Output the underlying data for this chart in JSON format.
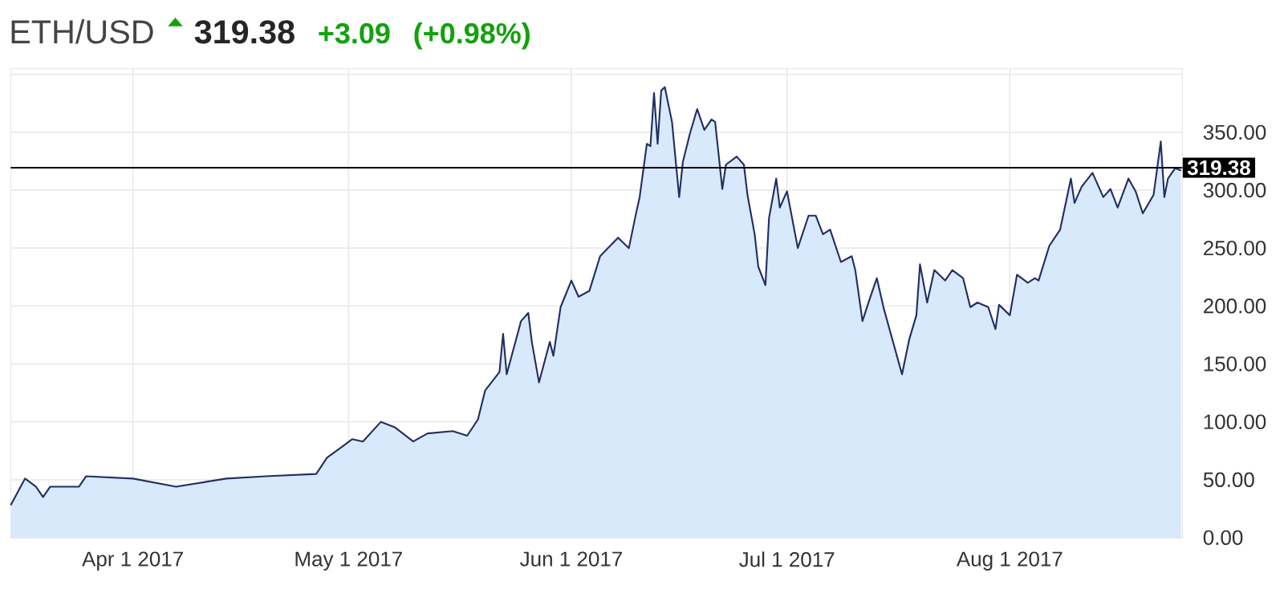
{
  "chart_data": {
    "type": "area",
    "title": "ETH/USD",
    "annotations": [
      "319.38",
      "+3.09",
      "(+0.98%)"
    ],
    "color": "#232f63",
    "x": [
      "2017-03-15",
      "2017-03-17",
      "2017-03-18T12:00",
      "2017-03-19T12:00",
      "2017-03-20T12:00",
      "2017-03-24T12:00",
      "2017-03-25T12:00",
      "2017-04-01",
      "2017-04-07",
      "2017-04-14",
      "2017-04-19T12:00",
      "2017-04-26T12:00",
      "2017-04-28",
      "2017-04-30",
      "2017-05-01T12:00",
      "2017-05-03",
      "2017-05-05T12:00",
      "2017-05-07T12:00",
      "2017-05-10",
      "2017-05-12",
      "2017-05-15T12:00",
      "2017-05-17T12:00",
      "2017-05-19",
      "2017-05-20",
      "2017-05-22",
      "2017-05-22T12:00",
      "2017-05-23",
      "2017-05-25",
      "2017-05-26",
      "2017-05-26T12:00",
      "2017-05-27T12:00",
      "2017-05-29",
      "2017-05-29T12:00",
      "2017-05-30T12:00",
      "2017-06-01",
      "2017-06-02",
      "2017-06-03T12:00",
      "2017-06-05",
      "2017-06-07T12:00",
      "2017-06-09",
      "2017-06-10",
      "2017-06-10T12:00",
      "2017-06-11T12:00",
      "2017-06-12",
      "2017-06-12T12:00",
      "2017-06-13",
      "2017-06-13T12:00",
      "2017-06-14",
      "2017-06-15",
      "2017-06-16",
      "2017-06-16T12:00",
      "2017-06-17T12:00",
      "2017-06-18T12:00",
      "2017-06-19T12:00",
      "2017-06-20T12:00",
      "2017-06-21",
      "2017-06-22",
      "2017-06-22T12:00",
      "2017-06-24",
      "2017-06-25",
      "2017-06-25T12:00",
      "2017-06-26T12:00",
      "2017-06-27",
      "2017-06-28",
      "2017-06-28T12:00",
      "2017-06-29T12:00",
      "2017-06-30",
      "2017-07-01",
      "2017-07-02T12:00",
      "2017-07-04",
      "2017-07-05",
      "2017-07-06",
      "2017-07-07",
      "2017-07-08T12:00",
      "2017-07-10",
      "2017-07-10T12:00",
      "2017-07-11T12:00",
      "2017-07-12T12:00",
      "2017-07-13T12:00",
      "2017-07-14T12:00",
      "2017-07-17",
      "2017-07-18",
      "2017-07-19",
      "2017-07-19T12:00",
      "2017-07-20T12:00",
      "2017-07-21T12:00",
      "2017-07-23",
      "2017-07-24",
      "2017-07-25T12:00",
      "2017-07-26T12:00",
      "2017-07-27T12:00",
      "2017-07-29",
      "2017-07-30",
      "2017-07-30T12:00",
      "2017-08-01",
      "2017-08-02",
      "2017-08-03T12:00",
      "2017-08-04T12:00",
      "2017-08-05",
      "2017-08-06T12:00",
      "2017-08-08",
      "2017-08-09T12:00",
      "2017-08-10",
      "2017-08-11",
      "2017-08-12T12:00",
      "2017-08-14",
      "2017-08-15",
      "2017-08-16",
      "2017-08-17T12:00",
      "2017-08-18T12:00",
      "2017-08-19T12:00",
      "2017-08-21",
      "2017-08-22",
      "2017-08-22T12:00",
      "2017-08-23",
      "2017-08-24",
      "2017-08-24T20:00"
    ],
    "values": [
      28,
      51,
      44,
      35,
      44,
      44,
      53,
      51,
      44,
      51,
      53,
      55,
      69,
      78,
      85,
      83,
      100,
      95,
      83,
      90,
      92,
      88,
      102,
      127,
      143,
      176,
      141,
      187,
      194,
      169,
      134,
      169,
      157,
      199,
      222,
      208,
      213,
      243,
      259,
      250,
      280,
      294,
      340,
      338,
      384,
      340,
      386,
      389,
      359,
      294,
      324,
      349,
      370,
      352,
      361,
      359,
      301,
      322,
      329,
      322,
      296,
      262,
      234,
      218,
      276,
      310,
      285,
      299,
      250,
      278,
      278,
      262,
      266,
      238,
      243,
      231,
      187,
      206,
      224,
      197,
      141,
      171,
      192,
      236,
      203,
      231,
      222,
      231,
      224,
      199,
      203,
      199,
      180,
      201,
      192,
      227,
      220,
      224,
      222,
      252,
      266,
      310,
      289,
      303,
      315,
      294,
      301,
      285,
      310,
      299,
      280,
      296,
      342,
      294,
      310,
      319,
      317
    ],
    "xlim": [
      "2017-03-15",
      "2017-08-25"
    ],
    "xticks": [
      {
        "value": "2017-04-01",
        "label": "Apr 1 2017"
      },
      {
        "value": "2017-05-01",
        "label": "May 1 2017"
      },
      {
        "value": "2017-06-01",
        "label": "Jun 1 2017"
      },
      {
        "value": "2017-07-01",
        "label": "Jul 1 2017"
      },
      {
        "value": "2017-08-01",
        "label": "Aug 1 2017"
      }
    ],
    "ylim": [
      0,
      405
    ],
    "yticks": [
      {
        "value": 0,
        "label": "0.00"
      },
      {
        "value": 50,
        "label": "50.00"
      },
      {
        "value": 100,
        "label": "100.00"
      },
      {
        "value": 150,
        "label": "150.00"
      },
      {
        "value": 200,
        "label": "200.00"
      },
      {
        "value": 250,
        "label": "250.00"
      },
      {
        "value": 300,
        "label": "300.00"
      },
      {
        "value": 350,
        "label": "350.00"
      },
      {
        "value": 400,
        "label": null
      }
    ],
    "grid": true,
    "ref_lines": [
      {
        "axis": "y",
        "value": 319.38,
        "label": "319.38",
        "color": "#000000"
      }
    ]
  }
}
